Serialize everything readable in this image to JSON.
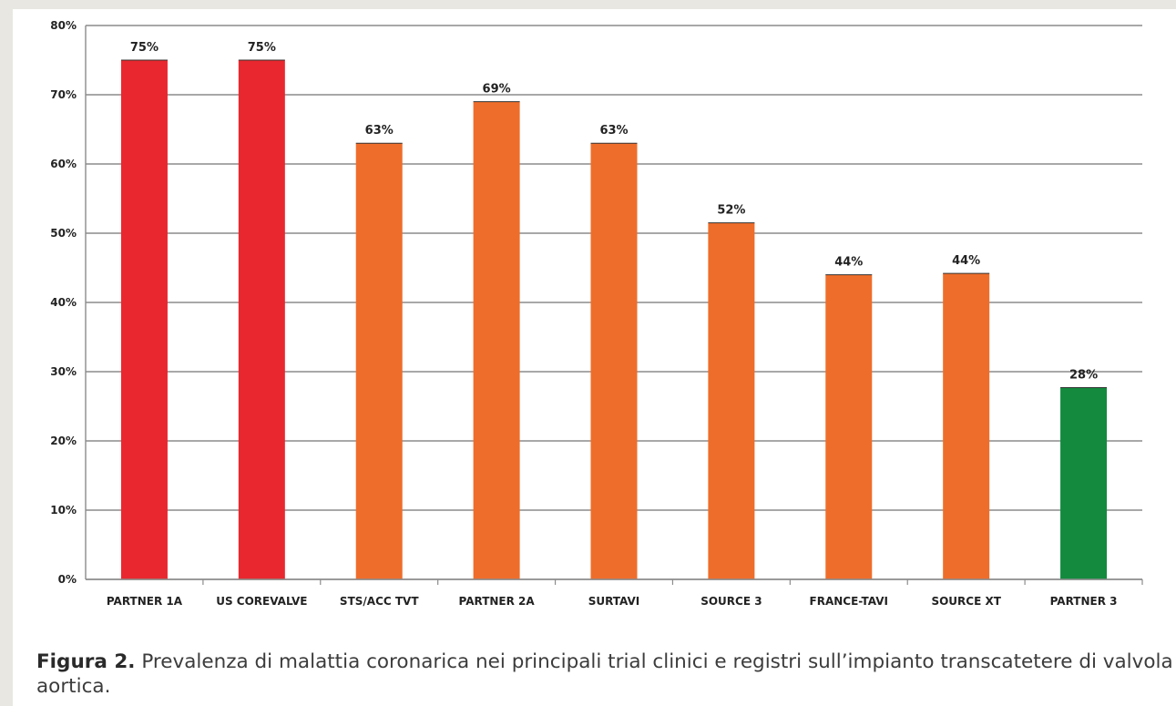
{
  "chart_data": {
    "type": "bar",
    "categories": [
      "PARTNER 1A",
      "US COREVALVE",
      "STS/ACC TVT",
      "PARTNER 2A",
      "SURTAVI",
      "SOURCE 3",
      "FRANCE-TAVI",
      "SOURCE XT",
      "PARTNER 3"
    ],
    "values": [
      75,
      75,
      63,
      69,
      63,
      51.5,
      44,
      44.2,
      27.7
    ],
    "value_labels": [
      "75%",
      "75%",
      "63%",
      "69%",
      "63%",
      "52%",
      "44%",
      "44%",
      "28%"
    ],
    "bar_colors": [
      "#e8282e",
      "#e8282e",
      "#ef6d2a",
      "#ef6d2a",
      "#ef6d2a",
      "#ef6d2a",
      "#ef6d2a",
      "#ef6d2a",
      "#138a3e"
    ],
    "ylim": [
      0,
      80
    ],
    "yticks": [
      0,
      10,
      20,
      30,
      40,
      50,
      60,
      70,
      80
    ],
    "ytick_labels": [
      "0%",
      "10%",
      "20%",
      "30%",
      "40%",
      "50%",
      "60%",
      "70%",
      "80%"
    ],
    "grid": true,
    "grid_color": "#8c8c8c",
    "title": "",
    "xlabel": "",
    "ylabel": "",
    "legend": "none"
  },
  "caption": {
    "label": "Figura 2.",
    "text": " Prevalenza di malattia coronarica nei principali trial clinici e registri sull’impianto transcatetere di valvola aortica."
  }
}
